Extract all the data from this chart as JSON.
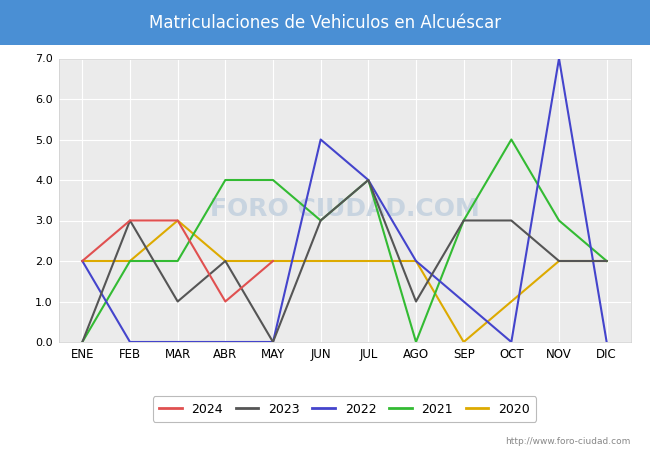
{
  "title": "Matriculaciones de Vehiculos en Alcuéscar",
  "months": [
    "ENE",
    "FEB",
    "MAR",
    "ABR",
    "MAY",
    "JUN",
    "JUL",
    "AGO",
    "SEP",
    "OCT",
    "NOV",
    "DIC"
  ],
  "series": {
    "2024": {
      "values": [
        2,
        3,
        3,
        1,
        2,
        null,
        null,
        null,
        null,
        null,
        null,
        null
      ],
      "color": "#e05050",
      "linewidth": 1.5
    },
    "2023": {
      "values": [
        0,
        3,
        1,
        2,
        0,
        3,
        4,
        1,
        3,
        3,
        2,
        2
      ],
      "color": "#555555",
      "linewidth": 1.5
    },
    "2022": {
      "values": [
        2,
        0,
        0,
        0,
        0,
        5,
        4,
        2,
        1,
        0,
        7,
        0
      ],
      "color": "#4444cc",
      "linewidth": 1.5
    },
    "2021": {
      "values": [
        0,
        2,
        2,
        4,
        4,
        3,
        4,
        0,
        3,
        5,
        3,
        2
      ],
      "color": "#33bb33",
      "linewidth": 1.5
    },
    "2020": {
      "values": [
        2,
        2,
        3,
        2,
        2,
        2,
        2,
        2,
        0,
        1,
        2,
        2
      ],
      "color": "#ddaa00",
      "linewidth": 1.5
    }
  },
  "ylim": [
    0.0,
    7.0
  ],
  "ytick_vals": [
    0.0,
    1.0,
    2.0,
    3.0,
    4.0,
    5.0,
    6.0,
    7.0
  ],
  "ytick_labels": [
    "0.0",
    "1.0",
    "2.0",
    "3.0",
    "4.0",
    "5.0",
    "6.0",
    "7.0"
  ],
  "title_bg_color": "#4a8fd4",
  "title_text_color": "#ffffff",
  "plot_bg_color": "#ebebeb",
  "fig_bg_color": "#ffffff",
  "grid_color": "#ffffff",
  "watermark_text": "FORO CIUDAD.COM",
  "watermark_color": "#c8d4e0",
  "url_text": "http://www.foro-ciudad.com",
  "legend_years": [
    "2024",
    "2023",
    "2022",
    "2021",
    "2020"
  ]
}
